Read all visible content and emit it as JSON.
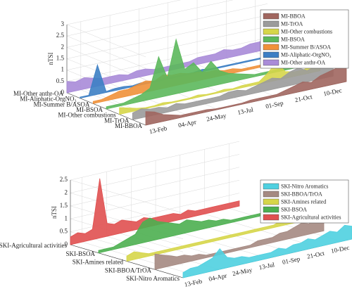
{
  "chart_data": [
    {
      "type": "waterfall",
      "ylabel": "nTSI",
      "ylim": [
        0,
        3
      ],
      "yticks": [
        0,
        0.5,
        1,
        1.5,
        2,
        2.5,
        3
      ],
      "xlim": [
        20,
        365
      ],
      "xticks": [
        {
          "value": 44,
          "label": "13-Feb"
        },
        {
          "value": 94,
          "label": "04-Apr"
        },
        {
          "value": 144,
          "label": "24-May"
        },
        {
          "value": 194,
          "label": "13-Jul"
        },
        {
          "value": 244,
          "label": "01-Sep"
        },
        {
          "value": 294,
          "label": "21-Oct"
        },
        {
          "value": 344,
          "label": "10-Dec"
        }
      ],
      "x": [
        20,
        35,
        50,
        65,
        80,
        95,
        110,
        125,
        140,
        155,
        170,
        185,
        200,
        215,
        230,
        245,
        260,
        275,
        290,
        305,
        320,
        335,
        350,
        365
      ],
      "legend": "upper right",
      "series": [
        {
          "name": "MI-BBOA",
          "color": "#a0665f",
          "values": [
            0.6,
            0.5,
            0.3,
            0.2,
            0.1,
            0.1,
            0.1,
            0.1,
            0.05,
            0.05,
            0.05,
            0.05,
            0.1,
            0.1,
            0.1,
            0.1,
            0.2,
            0.3,
            0.4,
            0.3,
            0.5,
            0.6,
            0.7,
            0.9
          ]
        },
        {
          "name": "MI-TrOA",
          "color": "#9b9b9b",
          "values": [
            0.3,
            0.4,
            0.3,
            0.3,
            0.2,
            0.3,
            0.2,
            0.2,
            0.2,
            0.2,
            0.2,
            0.3,
            0.3,
            0.2,
            0.3,
            0.4,
            0.5,
            0.4,
            0.6,
            0.7,
            0.5,
            0.6,
            0.8,
            0.7
          ]
        },
        {
          "name": "MI-Other combustions",
          "color": "#d6d64a",
          "values": [
            0.3,
            0.2,
            0.1,
            0.05,
            0.05,
            0.1,
            0.05,
            0.05,
            0.05,
            0.1,
            0.05,
            0.05,
            0.1,
            0.05,
            0.1,
            0.1,
            0.1,
            0.4,
            0.8,
            0.3,
            0.2,
            0.2,
            0.3,
            0.3
          ]
        },
        {
          "name": "MI-BSOA",
          "color": "#5cb85c",
          "values": [
            0.1,
            0.1,
            0.1,
            0.2,
            0.3,
            0.5,
            1.8,
            0.8,
            2.4,
            1.0,
            1.2,
            0.7,
            1.1,
            0.6,
            0.4,
            0.3,
            0.2,
            0.1,
            0.1,
            0.1,
            0.1,
            0.1,
            0.1,
            0.1
          ]
        },
        {
          "name": "MI-Summer B/ASOA",
          "color": "#f0913a",
          "values": [
            0.1,
            0.1,
            0.2,
            0.3,
            0.3,
            0.4,
            0.5,
            0.4,
            0.6,
            0.5,
            0.5,
            0.4,
            0.4,
            0.3,
            0.3,
            0.2,
            0.2,
            0.1,
            0.1,
            0.1,
            0.1,
            0.1,
            0.1,
            0.1
          ]
        },
        {
          "name": "MI-Aliphatic-OrgNO₃",
          "color": "#3d7fc4",
          "values": [
            0.05,
            0.05,
            1.3,
            0.05,
            0.1,
            0.1,
            0.05,
            0.1,
            0.05,
            0.05,
            0.1,
            0.05,
            0.05,
            0.05,
            0.1,
            0.05,
            0.05,
            0.05,
            0.05,
            0.05,
            0.05,
            0.05,
            0.05,
            0.05
          ]
        },
        {
          "name": "MI-Other anthr-OA",
          "color": "#a98bd8",
          "values": [
            0.5,
            0.4,
            0.5,
            0.4,
            0.3,
            0.3,
            0.3,
            0.2,
            0.3,
            0.3,
            0.2,
            0.2,
            0.2,
            0.2,
            0.2,
            0.3,
            0.3,
            0.3,
            0.4,
            0.3,
            0.3,
            0.4,
            0.4,
            0.5
          ]
        }
      ]
    },
    {
      "type": "waterfall",
      "ylabel": "nTSI",
      "ylim": [
        0,
        2.5
      ],
      "yticks": [
        0,
        0.5,
        1,
        1.5,
        2,
        2.5
      ],
      "xlim": [
        20,
        365
      ],
      "xticks": [
        {
          "value": 44,
          "label": "13-Feb"
        },
        {
          "value": 94,
          "label": "04-Apr"
        },
        {
          "value": 144,
          "label": "24-May"
        },
        {
          "value": 194,
          "label": "13-Jul"
        },
        {
          "value": 244,
          "label": "01-Sep"
        },
        {
          "value": 294,
          "label": "21-Oct"
        },
        {
          "value": 344,
          "label": "10-Dec"
        }
      ],
      "x": [
        20,
        35,
        50,
        65,
        80,
        95,
        110,
        125,
        140,
        155,
        170,
        185,
        200,
        215,
        230,
        245,
        260,
        275,
        290,
        305,
        320,
        335,
        350,
        365
      ],
      "legend": "upper right",
      "series": [
        {
          "name": "SKI-Nitro Aromatics",
          "color": "#4fd0e0",
          "values": [
            0.2,
            0.3,
            0.3,
            0.4,
            0.5,
            0.8,
            0.4,
            0.3,
            0.3,
            0.2,
            0.2,
            0.2,
            0.2,
            0.3,
            0.2,
            0.3,
            0.3,
            0.4,
            0.3,
            0.4,
            0.5,
            0.4,
            0.6,
            0.5
          ]
        },
        {
          "name": "SKI-BBOA/TrOA",
          "color": "#a58a82",
          "values": [
            0.6,
            0.5,
            0.4,
            0.3,
            0.3,
            0.2,
            0.2,
            0.1,
            0.1,
            0.1,
            0.1,
            0.1,
            0.1,
            0.1,
            0.2,
            0.2,
            0.2,
            0.3,
            0.3,
            0.4,
            0.5,
            0.4,
            0.8,
            0.9
          ]
        },
        {
          "name": "SKI-Amines related",
          "color": "#d6d64a",
          "values": [
            0.2,
            0.3,
            0.2,
            0.1,
            0.1,
            0.1,
            0.1,
            0.1,
            0.1,
            0.1,
            0.1,
            0.1,
            0.1,
            0.1,
            0.1,
            0.1,
            0.1,
            0.1,
            0.1,
            0.1,
            0.1,
            0.2,
            0.2,
            0.2
          ]
        },
        {
          "name": "SKI-BSOA",
          "color": "#4caf50",
          "values": [
            0.1,
            0.1,
            0.1,
            0.2,
            0.3,
            0.4,
            0.8,
            0.9,
            0.7,
            0.6,
            0.5,
            0.4,
            0.5,
            0.4,
            0.3,
            0.3,
            0.2,
            0.2,
            0.1,
            0.1,
            0.1,
            0.1,
            0.1,
            0.1
          ]
        },
        {
          "name": "SKI-Agricultural activities",
          "color": "#e05050",
          "values": [
            0.3,
            0.4,
            0.3,
            0.4,
            2.3,
            0.5,
            0.4,
            0.5,
            0.4,
            0.3,
            0.4,
            0.3,
            0.3,
            0.3,
            0.3,
            0.2,
            0.3,
            0.2,
            0.2,
            0.2,
            0.2,
            0.2,
            0.2,
            0.2
          ]
        }
      ]
    }
  ]
}
